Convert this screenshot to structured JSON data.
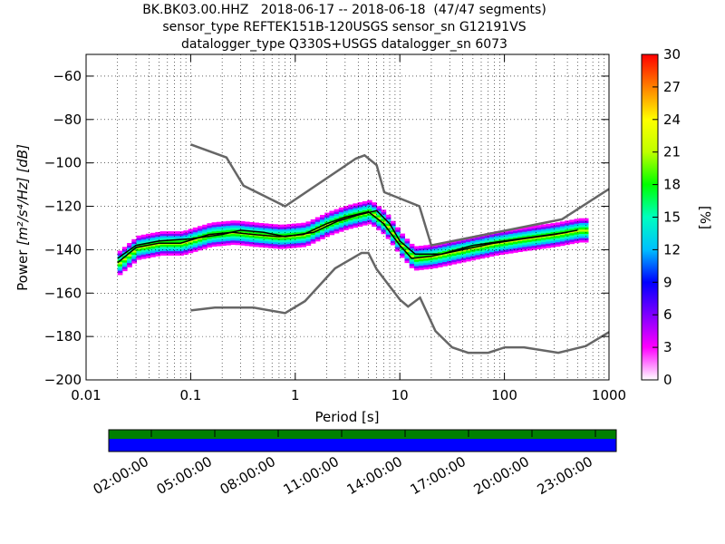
{
  "title_lines": [
    "BK.BK03.00.HHZ   2018-06-17 -- 2018-06-18  (47/47 segments)",
    "sensor_type REFTEK151B-120USGS sensor_sn G12191VS",
    "datalogger_type Q330S+USGS datalogger_sn 6073"
  ],
  "chart_data": {
    "type": "heatmap",
    "xlabel": "Period [s]",
    "ylabel_prefix": "Power ",
    "ylabel_unit": "[m²/s⁴/Hz] [dB]",
    "x_scale": "log",
    "xlim": [
      0.01,
      1000
    ],
    "ylim": [
      -200,
      -50
    ],
    "x_ticks": [
      0.01,
      0.1,
      1,
      10,
      100,
      1000
    ],
    "x_tick_labels": [
      "0.01",
      "0.1",
      "1",
      "10",
      "100",
      "1000"
    ],
    "y_ticks": [
      -200,
      -180,
      -160,
      -140,
      -120,
      -100,
      -80,
      -60
    ],
    "y_tick_labels": [
      "−200",
      "−180",
      "−160",
      "−140",
      "−120",
      "−100",
      "−80",
      "−60"
    ],
    "grid": "dotted",
    "noise_model_high": [
      [
        0.1,
        -91.5
      ],
      [
        0.22,
        -97.5
      ],
      [
        0.32,
        -110.5
      ],
      [
        0.8,
        -120
      ],
      [
        3.8,
        -98
      ],
      [
        4.6,
        -96.5
      ],
      [
        6,
        -101
      ],
      [
        7.1,
        -113.5
      ],
      [
        15.4,
        -120
      ],
      [
        20,
        -138
      ],
      [
        354,
        -126
      ],
      [
        1000,
        -112
      ]
    ],
    "noise_model_low": [
      [
        0.1,
        -168
      ],
      [
        0.17,
        -166.7
      ],
      [
        0.4,
        -166.7
      ],
      [
        0.8,
        -169.2
      ],
      [
        1.24,
        -163.7
      ],
      [
        2.4,
        -148.6
      ],
      [
        4.3,
        -141.5
      ],
      [
        5,
        -141.5
      ],
      [
        6,
        -149
      ],
      [
        10,
        -163
      ],
      [
        12,
        -166.2
      ],
      [
        15.6,
        -162.1
      ],
      [
        21.9,
        -177.5
      ],
      [
        31.6,
        -185
      ],
      [
        45,
        -187.5
      ],
      [
        70,
        -187.5
      ],
      [
        101,
        -185
      ],
      [
        154,
        -185
      ],
      [
        328,
        -187.5
      ],
      [
        600,
        -184.4
      ],
      [
        1000,
        -178
      ]
    ],
    "mean_psd": [
      [
        0.02,
        -146
      ],
      [
        0.03,
        -139
      ],
      [
        0.05,
        -137
      ],
      [
        0.08,
        -137
      ],
      [
        0.15,
        -133
      ],
      [
        0.25,
        -132
      ],
      [
        0.4,
        -133
      ],
      [
        0.7,
        -134
      ],
      [
        1.2,
        -133
      ],
      [
        2,
        -128
      ],
      [
        3,
        -125
      ],
      [
        5,
        -122.5
      ],
      [
        7,
        -128
      ],
      [
        10,
        -138
      ],
      [
        13,
        -144
      ],
      [
        20,
        -143
      ],
      [
        40,
        -140
      ],
      [
        80,
        -137
      ],
      [
        150,
        -135
      ],
      [
        300,
        -133
      ],
      [
        500,
        -131
      ]
    ],
    "mode_psd": [
      [
        0.02,
        -144
      ],
      [
        0.03,
        -138
      ],
      [
        0.05,
        -136
      ],
      [
        0.1,
        -135
      ],
      [
        0.2,
        -133
      ],
      [
        0.3,
        -131
      ],
      [
        0.5,
        -132
      ],
      [
        0.8,
        -134
      ],
      [
        1.5,
        -132
      ],
      [
        2.5,
        -127
      ],
      [
        4,
        -124
      ],
      [
        6,
        -122
      ],
      [
        8,
        -128
      ],
      [
        10,
        -136
      ],
      [
        14,
        -142
      ],
      [
        25,
        -142
      ],
      [
        50,
        -138
      ],
      [
        100,
        -136
      ],
      [
        200,
        -134
      ],
      [
        400,
        -132
      ]
    ],
    "colorbar": {
      "label": "[%]",
      "min": 0,
      "max": 30,
      "ticks": [
        0,
        3,
        6,
        9,
        12,
        15,
        18,
        21,
        24,
        27,
        30
      ],
      "colors": [
        "#ffffff",
        "#ff00ff",
        "#7f00ff",
        "#0000ff",
        "#00bfff",
        "#00ffbf",
        "#00ff00",
        "#bfff00",
        "#ffff00",
        "#ff8000",
        "#ff0000"
      ]
    },
    "time_axis": {
      "tick_labels": [
        "02:00:00",
        "05:00:00",
        "08:00:00",
        "11:00:00",
        "14:00:00",
        "17:00:00",
        "20:00:00",
        "23:00:00"
      ],
      "data_coverage_color": "#008000",
      "gap_color": "#0000ff"
    }
  }
}
